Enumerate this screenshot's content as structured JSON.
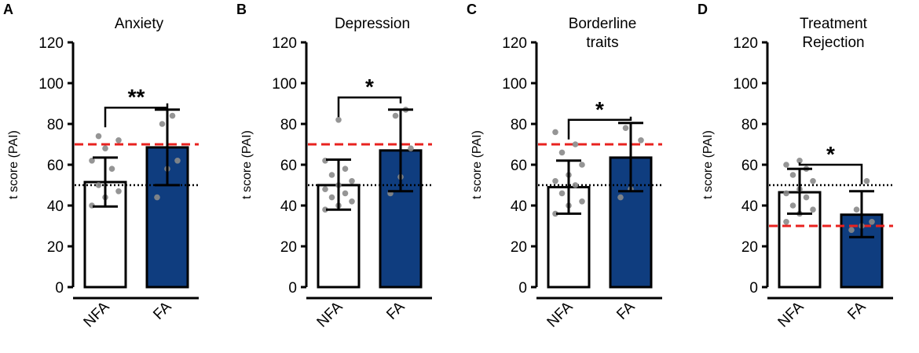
{
  "figure": {
    "ylim": [
      0,
      120
    ],
    "yticks": [
      0,
      20,
      40,
      60,
      80,
      100,
      120
    ],
    "ylabel": "t score (PAI)"
  },
  "colors": {
    "nfa_fill": "#ffffff",
    "fa_fill": "#0f3d7f",
    "dashed_red": "#e8221f",
    "dotted_black": "#000000",
    "dots": "#8a8a8a",
    "axis": "#000000"
  },
  "chart_data": [
    {
      "panel": "A",
      "type": "bar",
      "title_lines": [
        "Anxiety"
      ],
      "ylabel": "t score (PAI)",
      "ylim": [
        0,
        120
      ],
      "categories": [
        "NFA",
        "FA"
      ],
      "values": [
        51.5,
        68.5
      ],
      "error_low": [
        39.5,
        50.0
      ],
      "error_high": [
        63.5,
        87.0
      ],
      "points": [
        [
          40,
          44,
          47,
          50,
          58,
          62,
          68,
          72,
          74
        ],
        [
          44,
          58,
          62,
          80,
          84
        ]
      ],
      "red_line": 70,
      "dotted_line": 50,
      "significance": {
        "label": "**",
        "y": 88
      }
    },
    {
      "panel": "B",
      "type": "bar",
      "title_lines": [
        "Depression"
      ],
      "ylabel": "t score (PAI)",
      "ylim": [
        0,
        120
      ],
      "categories": [
        "NFA",
        "FA"
      ],
      "values": [
        50.0,
        67.0
      ],
      "error_low": [
        38.0,
        47.0
      ],
      "error_high": [
        62.5,
        87.0
      ],
      "points": [
        [
          38,
          40,
          42,
          44,
          46,
          48,
          50,
          52,
          55,
          58,
          62,
          82
        ],
        [
          46,
          54,
          68,
          84,
          87
        ]
      ],
      "red_line": 70,
      "dotted_line": 50,
      "significance": {
        "label": "*",
        "y": 93
      }
    },
    {
      "panel": "C",
      "type": "bar",
      "title_lines": [
        "Borderline",
        "traits"
      ],
      "ylabel": "t score (PAI)",
      "ylim": [
        0,
        120
      ],
      "categories": [
        "NFA",
        "FA"
      ],
      "values": [
        49.0,
        63.5
      ],
      "error_low": [
        36.0,
        47.0
      ],
      "error_high": [
        62.0,
        80.5
      ],
      "points": [
        [
          36,
          40,
          42,
          46,
          50,
          52,
          55,
          60,
          66,
          70,
          76
        ],
        [
          44,
          48,
          72,
          78
        ]
      ],
      "red_line": 70,
      "dotted_line": 50,
      "significance": {
        "label": "*",
        "y": 82
      }
    },
    {
      "panel": "D",
      "type": "bar",
      "title_lines": [
        "Treatment",
        "Rejection"
      ],
      "ylabel": "t score (PAI)",
      "ylim": [
        0,
        120
      ],
      "categories": [
        "NFA",
        "FA"
      ],
      "values": [
        46.5,
        35.5
      ],
      "error_low": [
        36.0,
        24.5
      ],
      "error_high": [
        58.0,
        47.0
      ],
      "points": [
        [
          32,
          36,
          38,
          40,
          44,
          46,
          48,
          52,
          55,
          58,
          60,
          62
        ],
        [
          28,
          30,
          32,
          38,
          52
        ]
      ],
      "red_line": 30,
      "dotted_line": 50,
      "significance": {
        "label": "*",
        "y": 60
      }
    }
  ]
}
